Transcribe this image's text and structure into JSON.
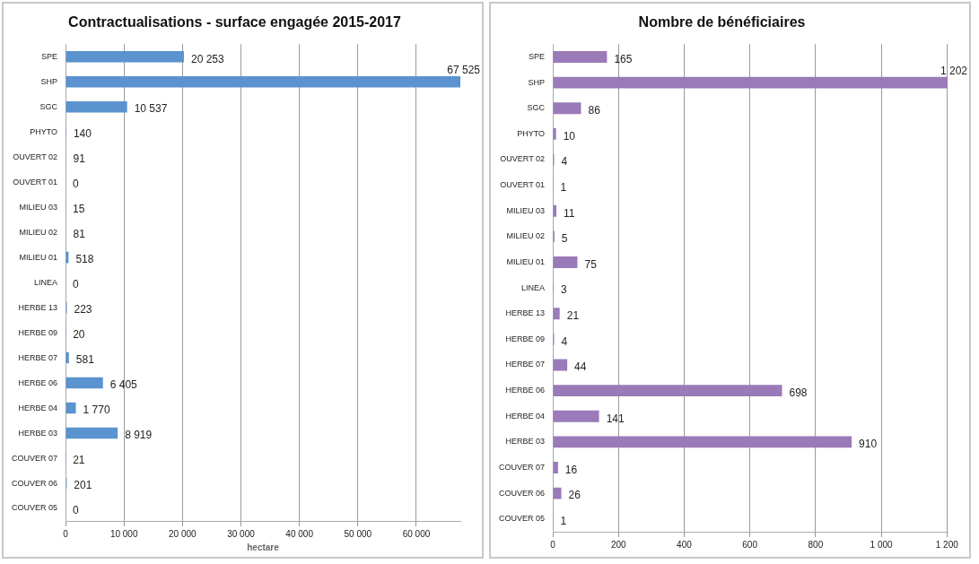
{
  "chart_data": [
    {
      "type": "bar",
      "orientation": "horizontal",
      "title": "Contractualisations - surface engagée 2015-2017",
      "xlabel": "hectare",
      "categories": [
        "SPE",
        "SHP",
        "SGC",
        "PHYTO",
        "OUVERT 02",
        "OUVERT 01",
        "MILIEU 03",
        "MILIEU 02",
        "MILIEU 01",
        "LINEA",
        "HERBE 13",
        "HERBE 09",
        "HERBE 07",
        "HERBE 06",
        "HERBE 04",
        "HERBE 03",
        "COUVER 07",
        "COUVER 06",
        "COUVER 05"
      ],
      "values": [
        20253,
        67525,
        10537,
        140,
        91,
        0,
        15,
        81,
        518,
        0,
        223,
        20,
        581,
        6405,
        1770,
        8919,
        21,
        201,
        0
      ],
      "value_labels": [
        "20 253",
        "67 525",
        "10 537",
        "140",
        "91",
        "0",
        "15",
        "81",
        "518",
        "0",
        "223",
        "20",
        "581",
        "6 405",
        "1 770",
        "8 919",
        "21",
        "201",
        "0"
      ],
      "color": "#5b93d0",
      "xlim": [
        0,
        67525
      ],
      "xticks": [
        0,
        {
          "value": 10000,
          "label": "10 000"
        },
        {
          "value": 20000,
          "label": "20 000"
        },
        {
          "value": 30000,
          "label": "30 000"
        },
        {
          "value": 40000,
          "label": "40 000"
        },
        {
          "value": 50000,
          "label": "50 000"
        },
        {
          "value": 60000,
          "label": "60 000"
        }
      ],
      "grid": "x",
      "legend": false
    },
    {
      "type": "bar",
      "orientation": "horizontal",
      "title": "Nombre de bénéficiaires",
      "categories": [
        "SPE",
        "SHP",
        "SGC",
        "PHYTO",
        "OUVERT 02",
        "OUVERT 01",
        "MILIEU 03",
        "MILIEU 02",
        "MILIEU 01",
        "LINEA",
        "HERBE 13",
        "HERBE 09",
        "HERBE 07",
        "HERBE 06",
        "HERBE 04",
        "HERBE 03",
        "COUVER 07",
        "COUVER 06",
        "COUVER 05"
      ],
      "values": [
        165,
        1202,
        86,
        10,
        4,
        1,
        11,
        5,
        75,
        3,
        21,
        4,
        44,
        698,
        141,
        910,
        16,
        26,
        1
      ],
      "value_labels": [
        "165",
        "1 202",
        "86",
        "10",
        "4",
        "1",
        "11",
        "5",
        "75",
        "3",
        "21",
        "4",
        "44",
        "698",
        "141",
        "910",
        "16",
        "26",
        "1"
      ],
      "color": "#9a7ab8",
      "xlim": [
        0,
        1202
      ],
      "xticks": [
        0,
        200,
        400,
        600,
        800,
        {
          "value": 1000,
          "label": "1 000"
        },
        {
          "value": 1200,
          "label": "1 200"
        }
      ],
      "grid": "x",
      "legend": false
    }
  ]
}
